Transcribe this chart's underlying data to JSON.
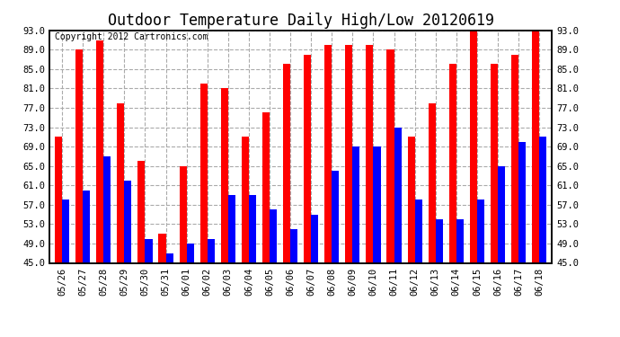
{
  "title": "Outdoor Temperature Daily High/Low 20120619",
  "copyright": "Copyright 2012 Cartronics.com",
  "dates": [
    "05/26",
    "05/27",
    "05/28",
    "05/29",
    "05/30",
    "05/31",
    "06/01",
    "06/02",
    "06/03",
    "06/04",
    "06/05",
    "06/06",
    "06/07",
    "06/08",
    "06/09",
    "06/10",
    "06/11",
    "06/12",
    "06/13",
    "06/14",
    "06/15",
    "06/16",
    "06/17",
    "06/18"
  ],
  "highs": [
    71,
    89,
    91,
    78,
    66,
    51,
    65,
    82,
    81,
    71,
    76,
    86,
    88,
    90,
    90,
    90,
    89,
    71,
    78,
    86,
    93,
    86,
    88,
    93
  ],
  "lows": [
    58,
    60,
    67,
    62,
    50,
    47,
    49,
    50,
    59,
    59,
    56,
    52,
    55,
    64,
    69,
    69,
    73,
    58,
    54,
    54,
    58,
    65,
    70,
    71
  ],
  "high_color": "#ff0000",
  "low_color": "#0000ff",
  "bg_color": "#ffffff",
  "plot_bg_color": "#ffffff",
  "grid_color": "#aaaaaa",
  "ylim": [
    45,
    93
  ],
  "yticks": [
    45.0,
    49.0,
    53.0,
    57.0,
    61.0,
    65.0,
    69.0,
    73.0,
    77.0,
    81.0,
    85.0,
    89.0,
    93.0
  ],
  "bar_width": 0.35,
  "title_fontsize": 12,
  "tick_fontsize": 7.5,
  "copyright_fontsize": 7
}
